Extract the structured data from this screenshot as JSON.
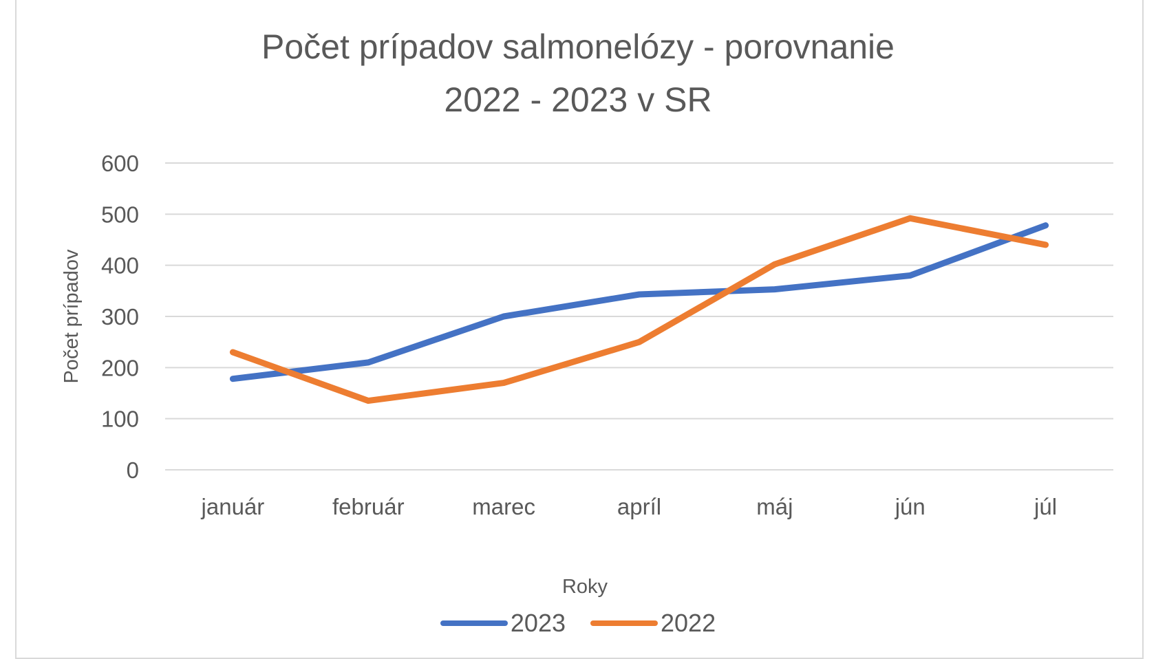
{
  "chart_data": {
    "type": "line",
    "title_line1": "Počet prípadov salmonelózy - porovnanie",
    "title_line2": "2022 - 2023 v SR",
    "xlabel": "Roky",
    "ylabel": "Počet prípadov",
    "categories": [
      "január",
      "február",
      "marec",
      "apríl",
      "máj",
      "jún",
      "júl"
    ],
    "ylim": [
      0,
      600
    ],
    "yticks": [
      "0",
      "100",
      "200",
      "300",
      "400",
      "500",
      "600"
    ],
    "grid": true,
    "legend": "bottom",
    "series": [
      {
        "name": "2023",
        "color": "#4472C4",
        "values": [
          178,
          210,
          300,
          343,
          353,
          380,
          478
        ]
      },
      {
        "name": "2022",
        "color": "#ED7D31",
        "values": [
          230,
          135,
          170,
          250,
          402,
          492,
          440
        ]
      }
    ]
  }
}
